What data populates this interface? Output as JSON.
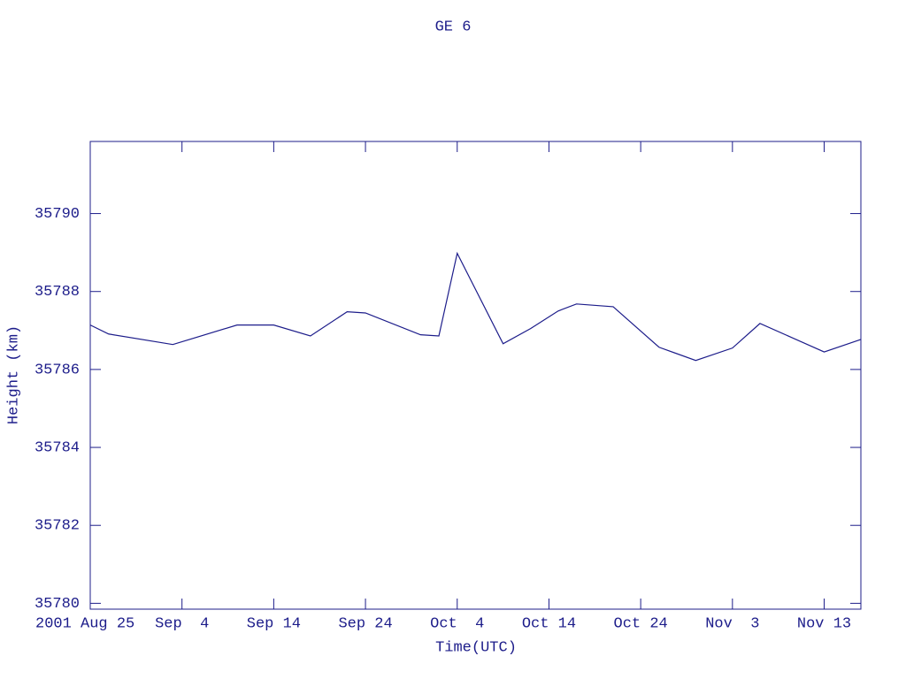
{
  "chart_data": {
    "type": "line",
    "title": "GE 6",
    "xlabel": "Time(UTC)",
    "ylabel": "Height (km)",
    "x": [
      "2001-08-25",
      "2001-08-27",
      "2001-09-03",
      "2001-09-10",
      "2001-09-14",
      "2001-09-18",
      "2001-09-22",
      "2001-09-24",
      "2001-09-30",
      "2001-10-02",
      "2001-10-04",
      "2001-10-09",
      "2001-10-12",
      "2001-10-15",
      "2001-10-17",
      "2001-10-21",
      "2001-10-26",
      "2001-10-30",
      "2001-11-03",
      "2001-11-06",
      "2001-11-13",
      "2001-11-17"
    ],
    "series": [
      {
        "color": "#1c1c8a",
        "values": [
          35787.14,
          35786.91,
          35786.64,
          35787.14,
          35787.14,
          35786.86,
          35787.48,
          35787.45,
          35786.89,
          35786.86,
          35788.98,
          35786.66,
          35787.05,
          35787.5,
          35787.68,
          35787.61,
          35786.57,
          35786.23,
          35786.55,
          35787.18,
          35786.45,
          35786.77
        ]
      }
    ],
    "xlim": [
      "2001-08-25",
      "2001-11-17"
    ],
    "xticks": [
      {
        "value": "2001-08-25",
        "label": "2001 Aug 25"
      },
      {
        "value": "2001-09-04",
        "label": "Sep  4"
      },
      {
        "value": "2001-09-14",
        "label": "Sep 14"
      },
      {
        "value": "2001-09-24",
        "label": "Sep 24"
      },
      {
        "value": "2001-10-04",
        "label": "Oct  4"
      },
      {
        "value": "2001-10-14",
        "label": "Oct 14"
      },
      {
        "value": "2001-10-24",
        "label": "Oct 24"
      },
      {
        "value": "2001-11-03",
        "label": "Nov  3"
      },
      {
        "value": "2001-11-13",
        "label": "Nov 13"
      }
    ],
    "ylim": [
      35779.85,
      35791.85
    ],
    "yticks": [
      35780,
      35782,
      35784,
      35786,
      35788,
      35790
    ]
  }
}
